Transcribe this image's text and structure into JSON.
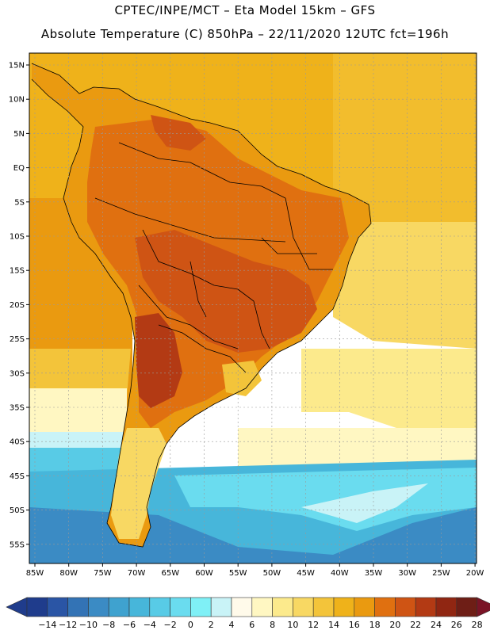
{
  "header": {
    "line1": "CPTEC/INPE/MCT –  Eta Model 15km – GFS",
    "line2": "Absolute Temperature (C) 850hPa – 22/11/2020 12UTC fct=196h"
  },
  "map": {
    "lat_labels": [
      "15N",
      "10N",
      "5N",
      "EQ",
      "5S",
      "10S",
      "15S",
      "20S",
      "25S",
      "30S",
      "35S",
      "40S",
      "45S",
      "50S",
      "55S"
    ],
    "lon_labels": [
      "85W",
      "80W",
      "75W",
      "70W",
      "65W",
      "60W",
      "55W",
      "50W",
      "45W",
      "40W",
      "35W",
      "30W",
      "25W",
      "20W"
    ]
  },
  "colorbar": {
    "labels": [
      "-14",
      "-12",
      "-10",
      "-8",
      "-6",
      "-4",
      "-2",
      "0",
      "2",
      "4",
      "6",
      "8",
      "10",
      "12",
      "14",
      "16",
      "18",
      "20",
      "22",
      "24",
      "26",
      "28"
    ],
    "colors": [
      "#1f3c8c",
      "#2a55a5",
      "#3373b5",
      "#3b8bc4",
      "#3fa2cf",
      "#47b6da",
      "#58cbe6",
      "#6adcef",
      "#7ff0f6",
      "#c9f3f7",
      "#fffaea",
      "#fff7c2",
      "#fcea8c",
      "#f8d863",
      "#f3c43a",
      "#efb21a",
      "#ea9a10",
      "#e07010",
      "#cf5414",
      "#b33a14",
      "#902612",
      "#6e1e16"
    ]
  }
}
